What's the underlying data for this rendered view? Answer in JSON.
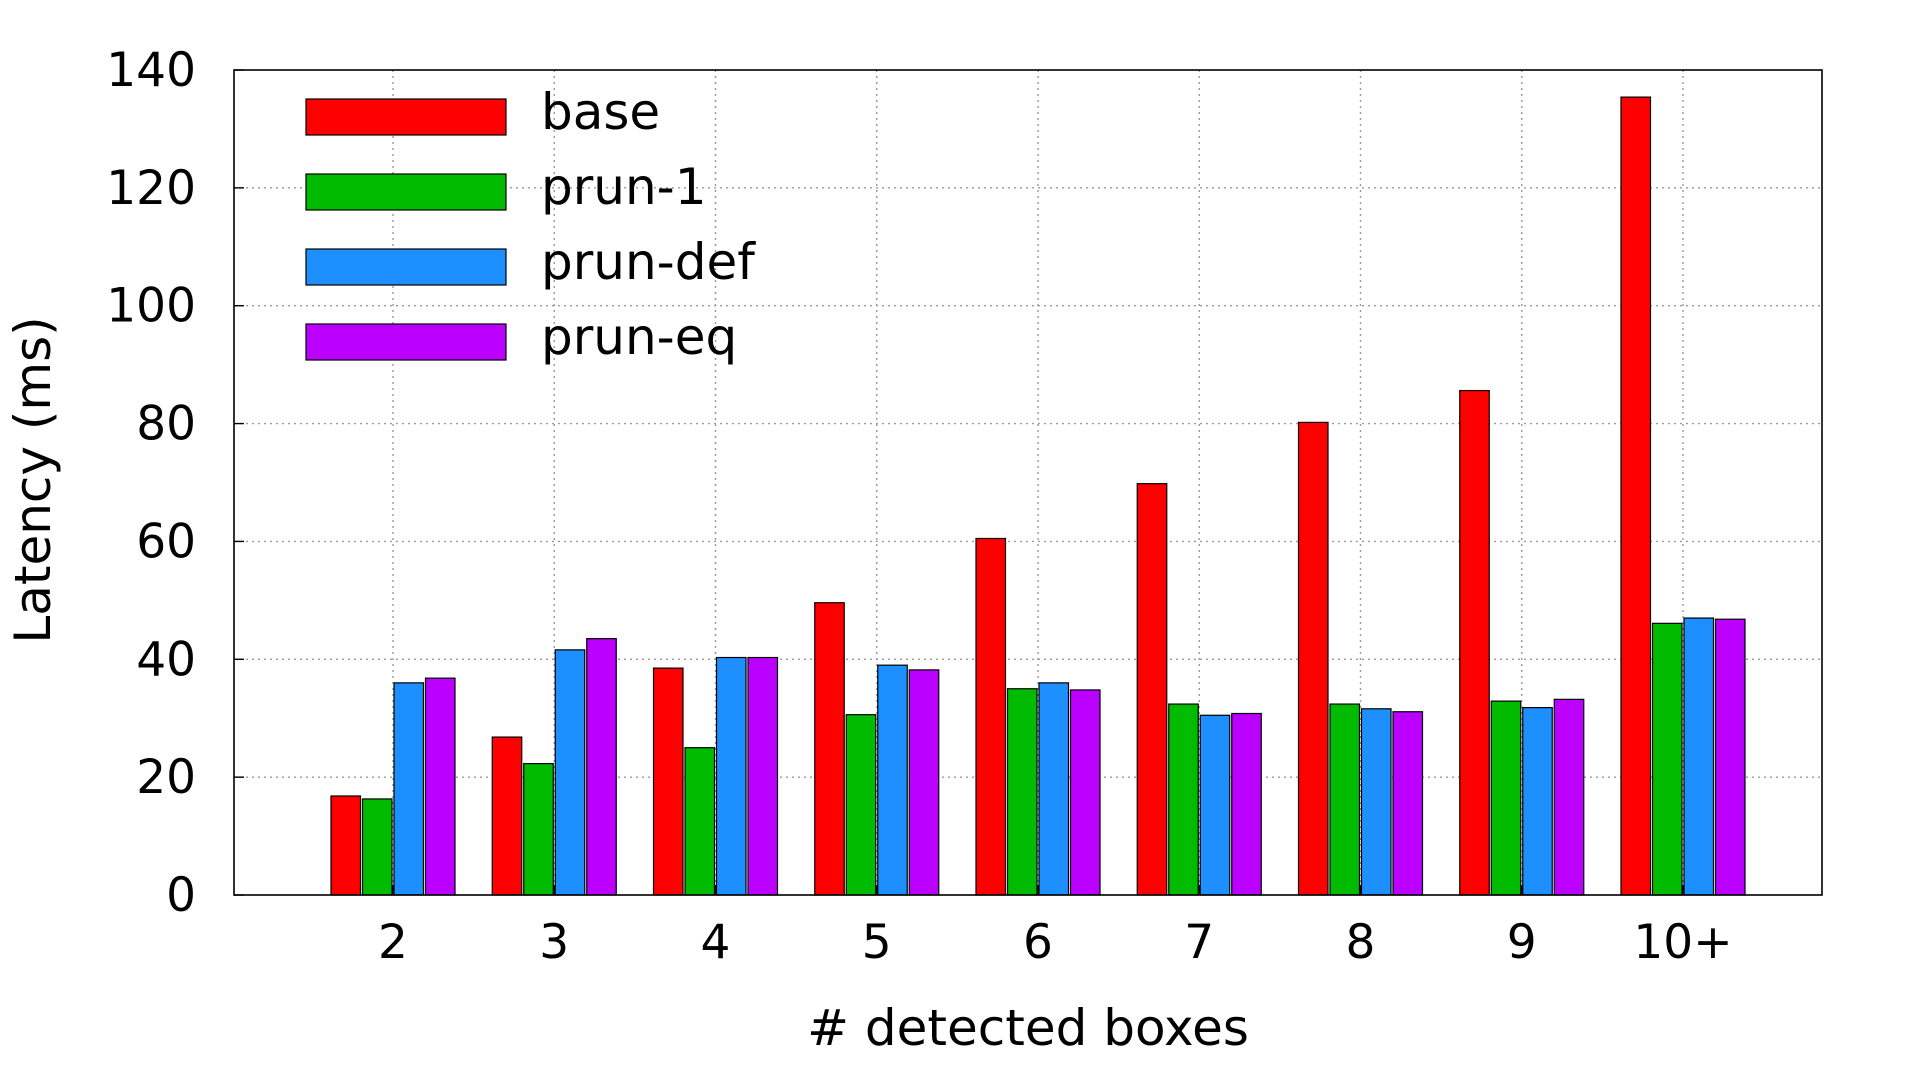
{
  "chart_data": {
    "type": "bar",
    "xlabel": "# detected boxes",
    "ylabel": "Latency (ms)",
    "ylim": [
      0,
      140
    ],
    "yticks": [
      0,
      20,
      40,
      60,
      80,
      100,
      120,
      140
    ],
    "grid": true,
    "legend_position": "top-left",
    "categories": [
      "2",
      "3",
      "4",
      "5",
      "6",
      "7",
      "8",
      "9",
      "10+"
    ],
    "series": [
      {
        "name": "base",
        "color": "#ff0000",
        "values": [
          16.8,
          26.8,
          38.5,
          49.6,
          60.5,
          69.8,
          80.2,
          85.6,
          135.4
        ]
      },
      {
        "name": "prun-1",
        "color": "#00bb00",
        "values": [
          16.3,
          22.3,
          25.0,
          30.6,
          35.0,
          32.4,
          32.4,
          32.9,
          46.1
        ]
      },
      {
        "name": "prun-def",
        "color": "#1e8fff",
        "values": [
          36.0,
          41.6,
          40.3,
          39.0,
          36.0,
          30.5,
          31.6,
          31.8,
          47.0
        ]
      },
      {
        "name": "prun-eq",
        "color": "#bb00ff",
        "values": [
          36.8,
          43.5,
          40.3,
          38.2,
          34.8,
          30.8,
          31.1,
          33.2,
          46.8
        ]
      }
    ]
  }
}
